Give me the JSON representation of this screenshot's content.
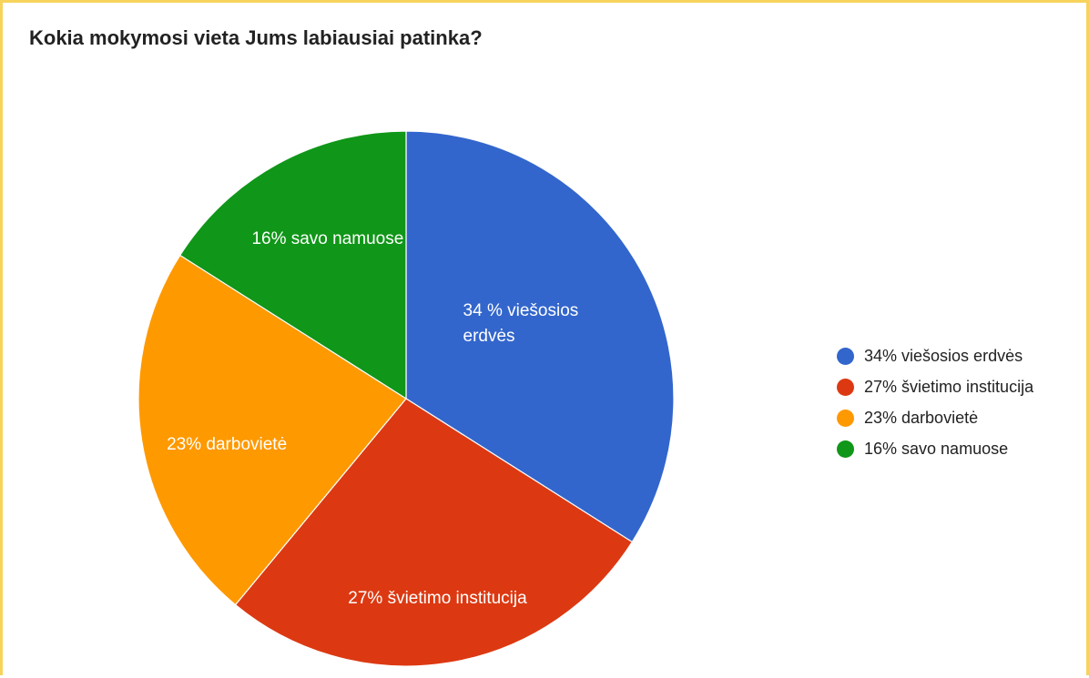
{
  "chart_data": {
    "type": "pie",
    "title": "Kokia mokymosi vieta Jums labiausiai patinka?",
    "slices": [
      {
        "legend": "34% viešosios erdvės",
        "label": "34 % viešosios erdvės",
        "value": 34,
        "color": "#3366cc"
      },
      {
        "legend": "27% švietimo institucija",
        "label": "27% švietimo institucija",
        "value": 27,
        "color": "#dc3912"
      },
      {
        "legend": "23% darbovietė",
        "label": "23% darbovietė",
        "value": 23,
        "color": "#ff9900"
      },
      {
        "legend": "16% savo namuose",
        "label": "16% savo namuose",
        "value": 16,
        "color": "#109618"
      }
    ],
    "legend_position": "right"
  }
}
